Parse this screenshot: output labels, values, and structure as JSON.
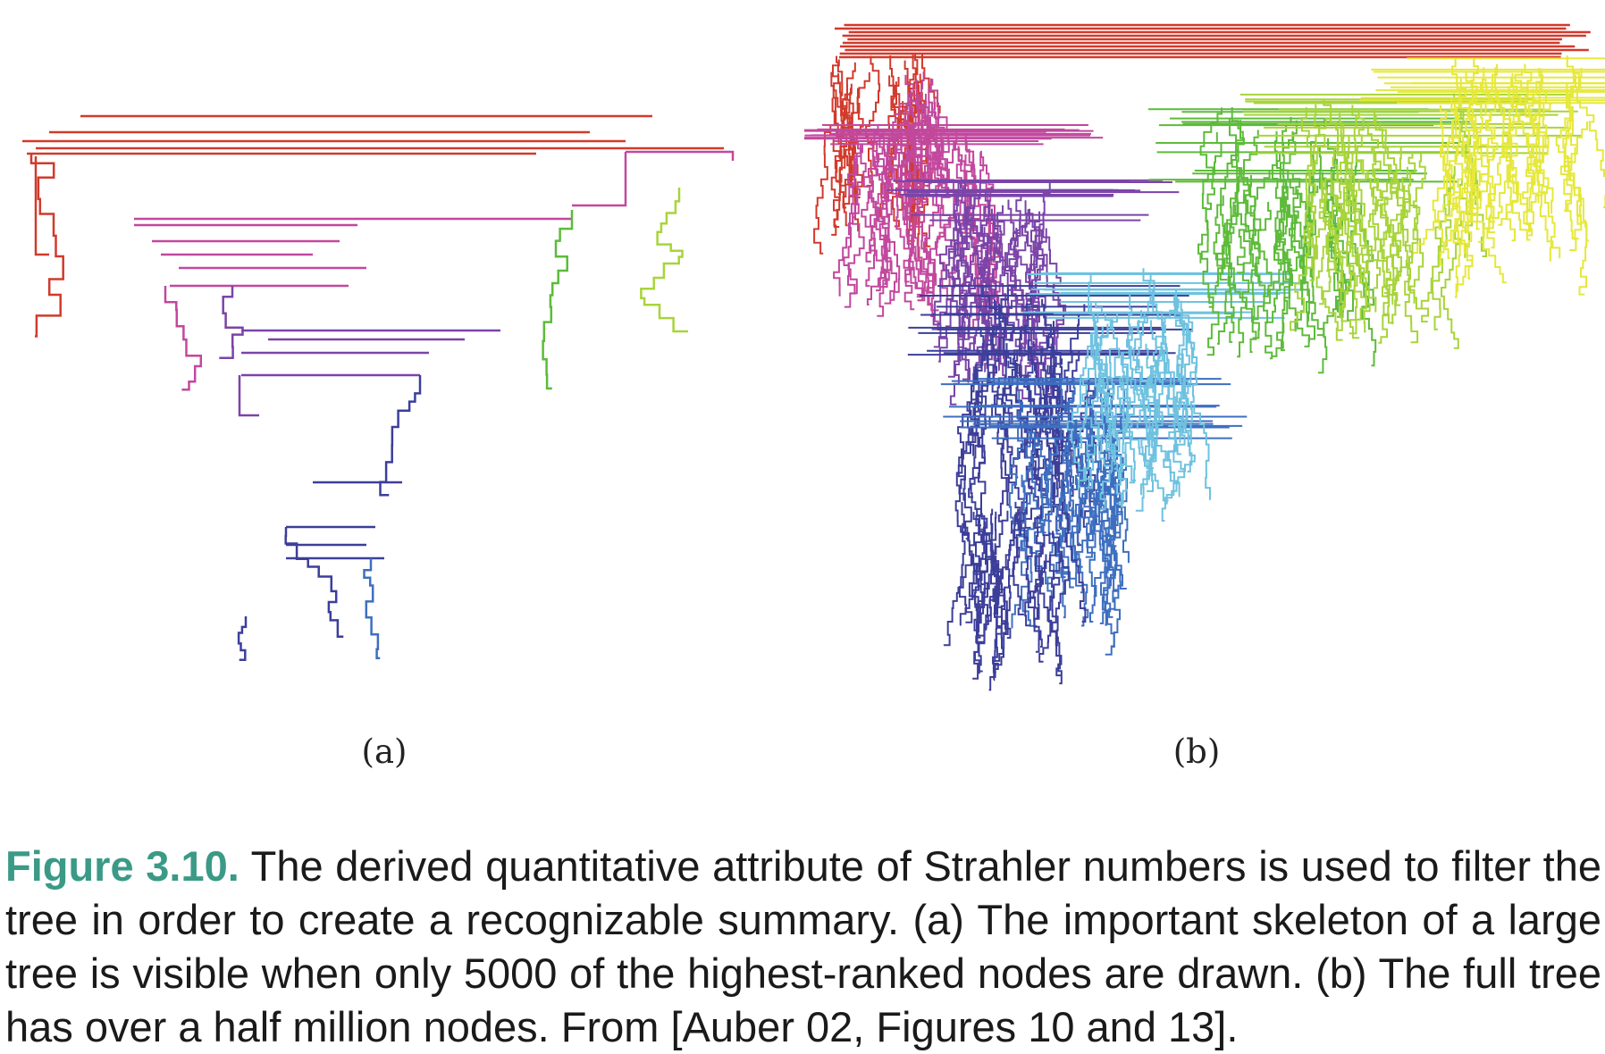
{
  "figure": {
    "number_label": "Figure 3.10.",
    "caption_text": " The derived quantitative attribute of Strahler numbers is used to filter the tree in order to create a recognizable summary. (a) The important skeleton of a large tree is visible when only 5000 of the highest-ranked nodes are drawn. (b) The full tree has over a half million nodes. From [Auber 02, Figures 10 and 13].",
    "panels": [
      {
        "label": "(a)",
        "nodes_drawn": 5000
      },
      {
        "label": "(b)"
      }
    ]
  },
  "colors": {
    "red": "#d13a2c",
    "magenta": "#c2489e",
    "purple": "#7a44a8",
    "indigo": "#3c3e9a",
    "blue": "#3d6fc0",
    "cyan": "#6ec2e0",
    "green": "#5dbb3a",
    "lime": "#a8d43a",
    "yellow": "#e6e83a"
  }
}
